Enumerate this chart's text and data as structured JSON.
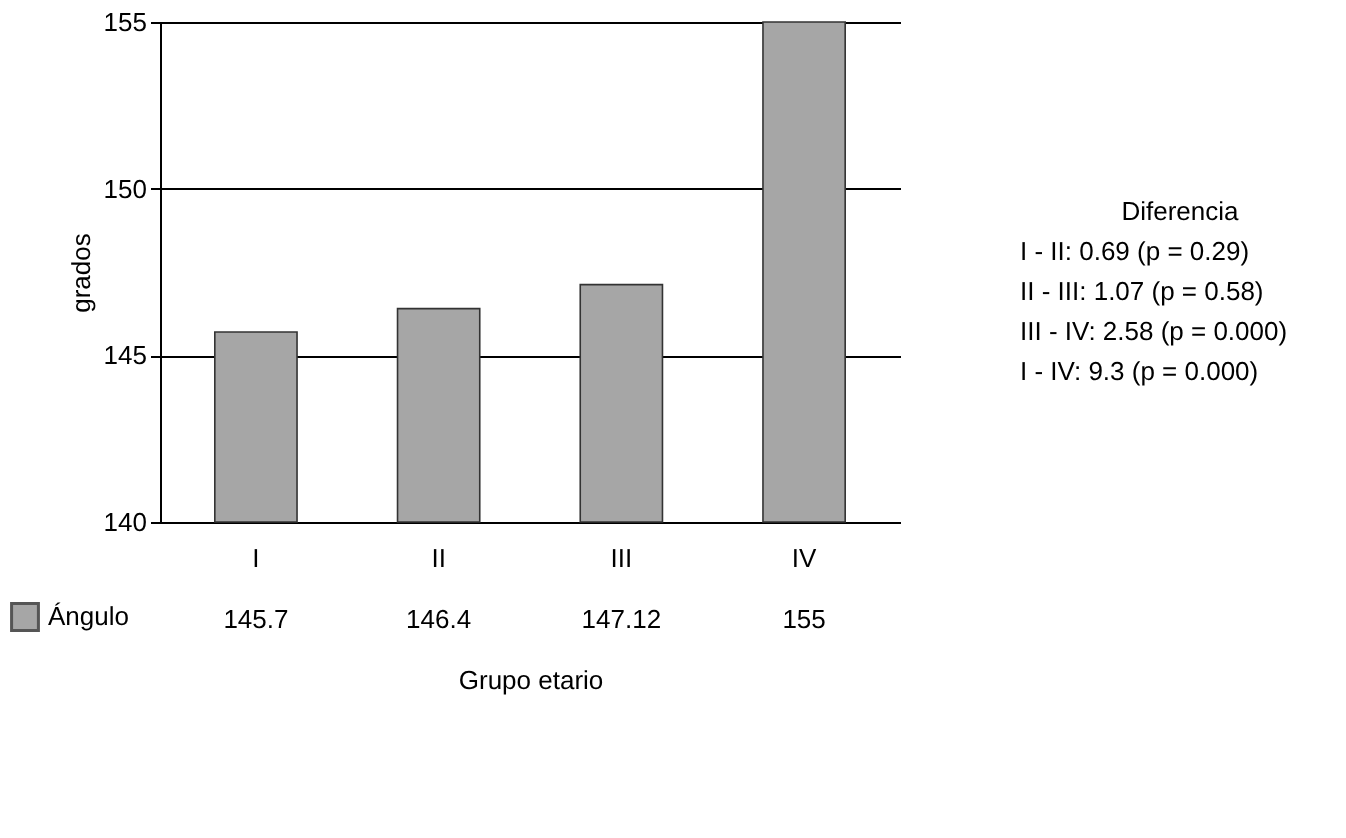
{
  "chart_data": {
    "type": "bar",
    "xlabel": "Grupo etario",
    "ylabel": "grados",
    "categories": [
      "I",
      "II",
      "III",
      "IV"
    ],
    "series": [
      {
        "name": "Ángulo",
        "color": "#a6a6a6",
        "values": [
          145.7,
          146.4,
          147.12,
          155
        ]
      }
    ],
    "ylim": [
      140,
      155
    ],
    "yticks": [
      140,
      145,
      150,
      155
    ],
    "grid": "y",
    "data_labels": true,
    "legend": "bottom left",
    "annotations": [
      "Diferencia",
      "I - II:  0.69  (p = 0.29)",
      "II - III: 1.07  (p = 0.58)",
      "III - IV: 2.58  (p = 0.000)",
      "I - IV: 9.3    (p = 0.000)"
    ]
  }
}
